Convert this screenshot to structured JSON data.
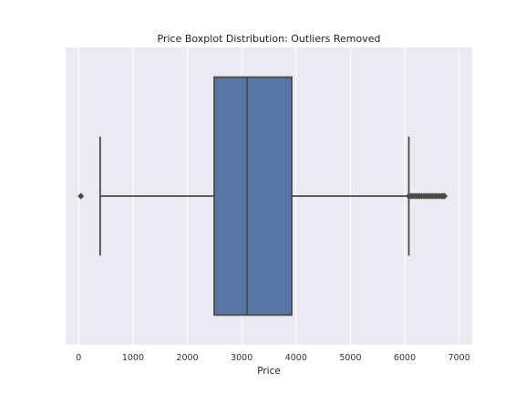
{
  "chart_data": {
    "type": "boxplot",
    "orientation": "horizontal",
    "title": "Price Boxplot Distribution: Outliers Removed",
    "xlabel": "Price",
    "ylabel": "",
    "xlim": [
      -240,
      7240
    ],
    "xticks": [
      0,
      1000,
      2000,
      3000,
      4000,
      5000,
      6000,
      7000
    ],
    "xtick_labels": [
      "0",
      "1000",
      "2000",
      "3000",
      "4000",
      "5000",
      "6000",
      "7000"
    ],
    "grid": true,
    "box": {
      "whisker_low": 395,
      "q1": 2495,
      "median": 3100,
      "q3": 3920,
      "whisker_high": 6075
    },
    "outliers_low": [
      40
    ],
    "outliers_high": [
      6075,
      6110,
      6150,
      6190,
      6230,
      6270,
      6310,
      6350,
      6390,
      6430,
      6470,
      6510,
      6550,
      6590,
      6630,
      6670,
      6700,
      6730
    ],
    "colors": {
      "box_fill": "#5975a4",
      "line": "#4a4a4a",
      "background": "#eaeaf2",
      "grid": "#ffffff"
    }
  }
}
